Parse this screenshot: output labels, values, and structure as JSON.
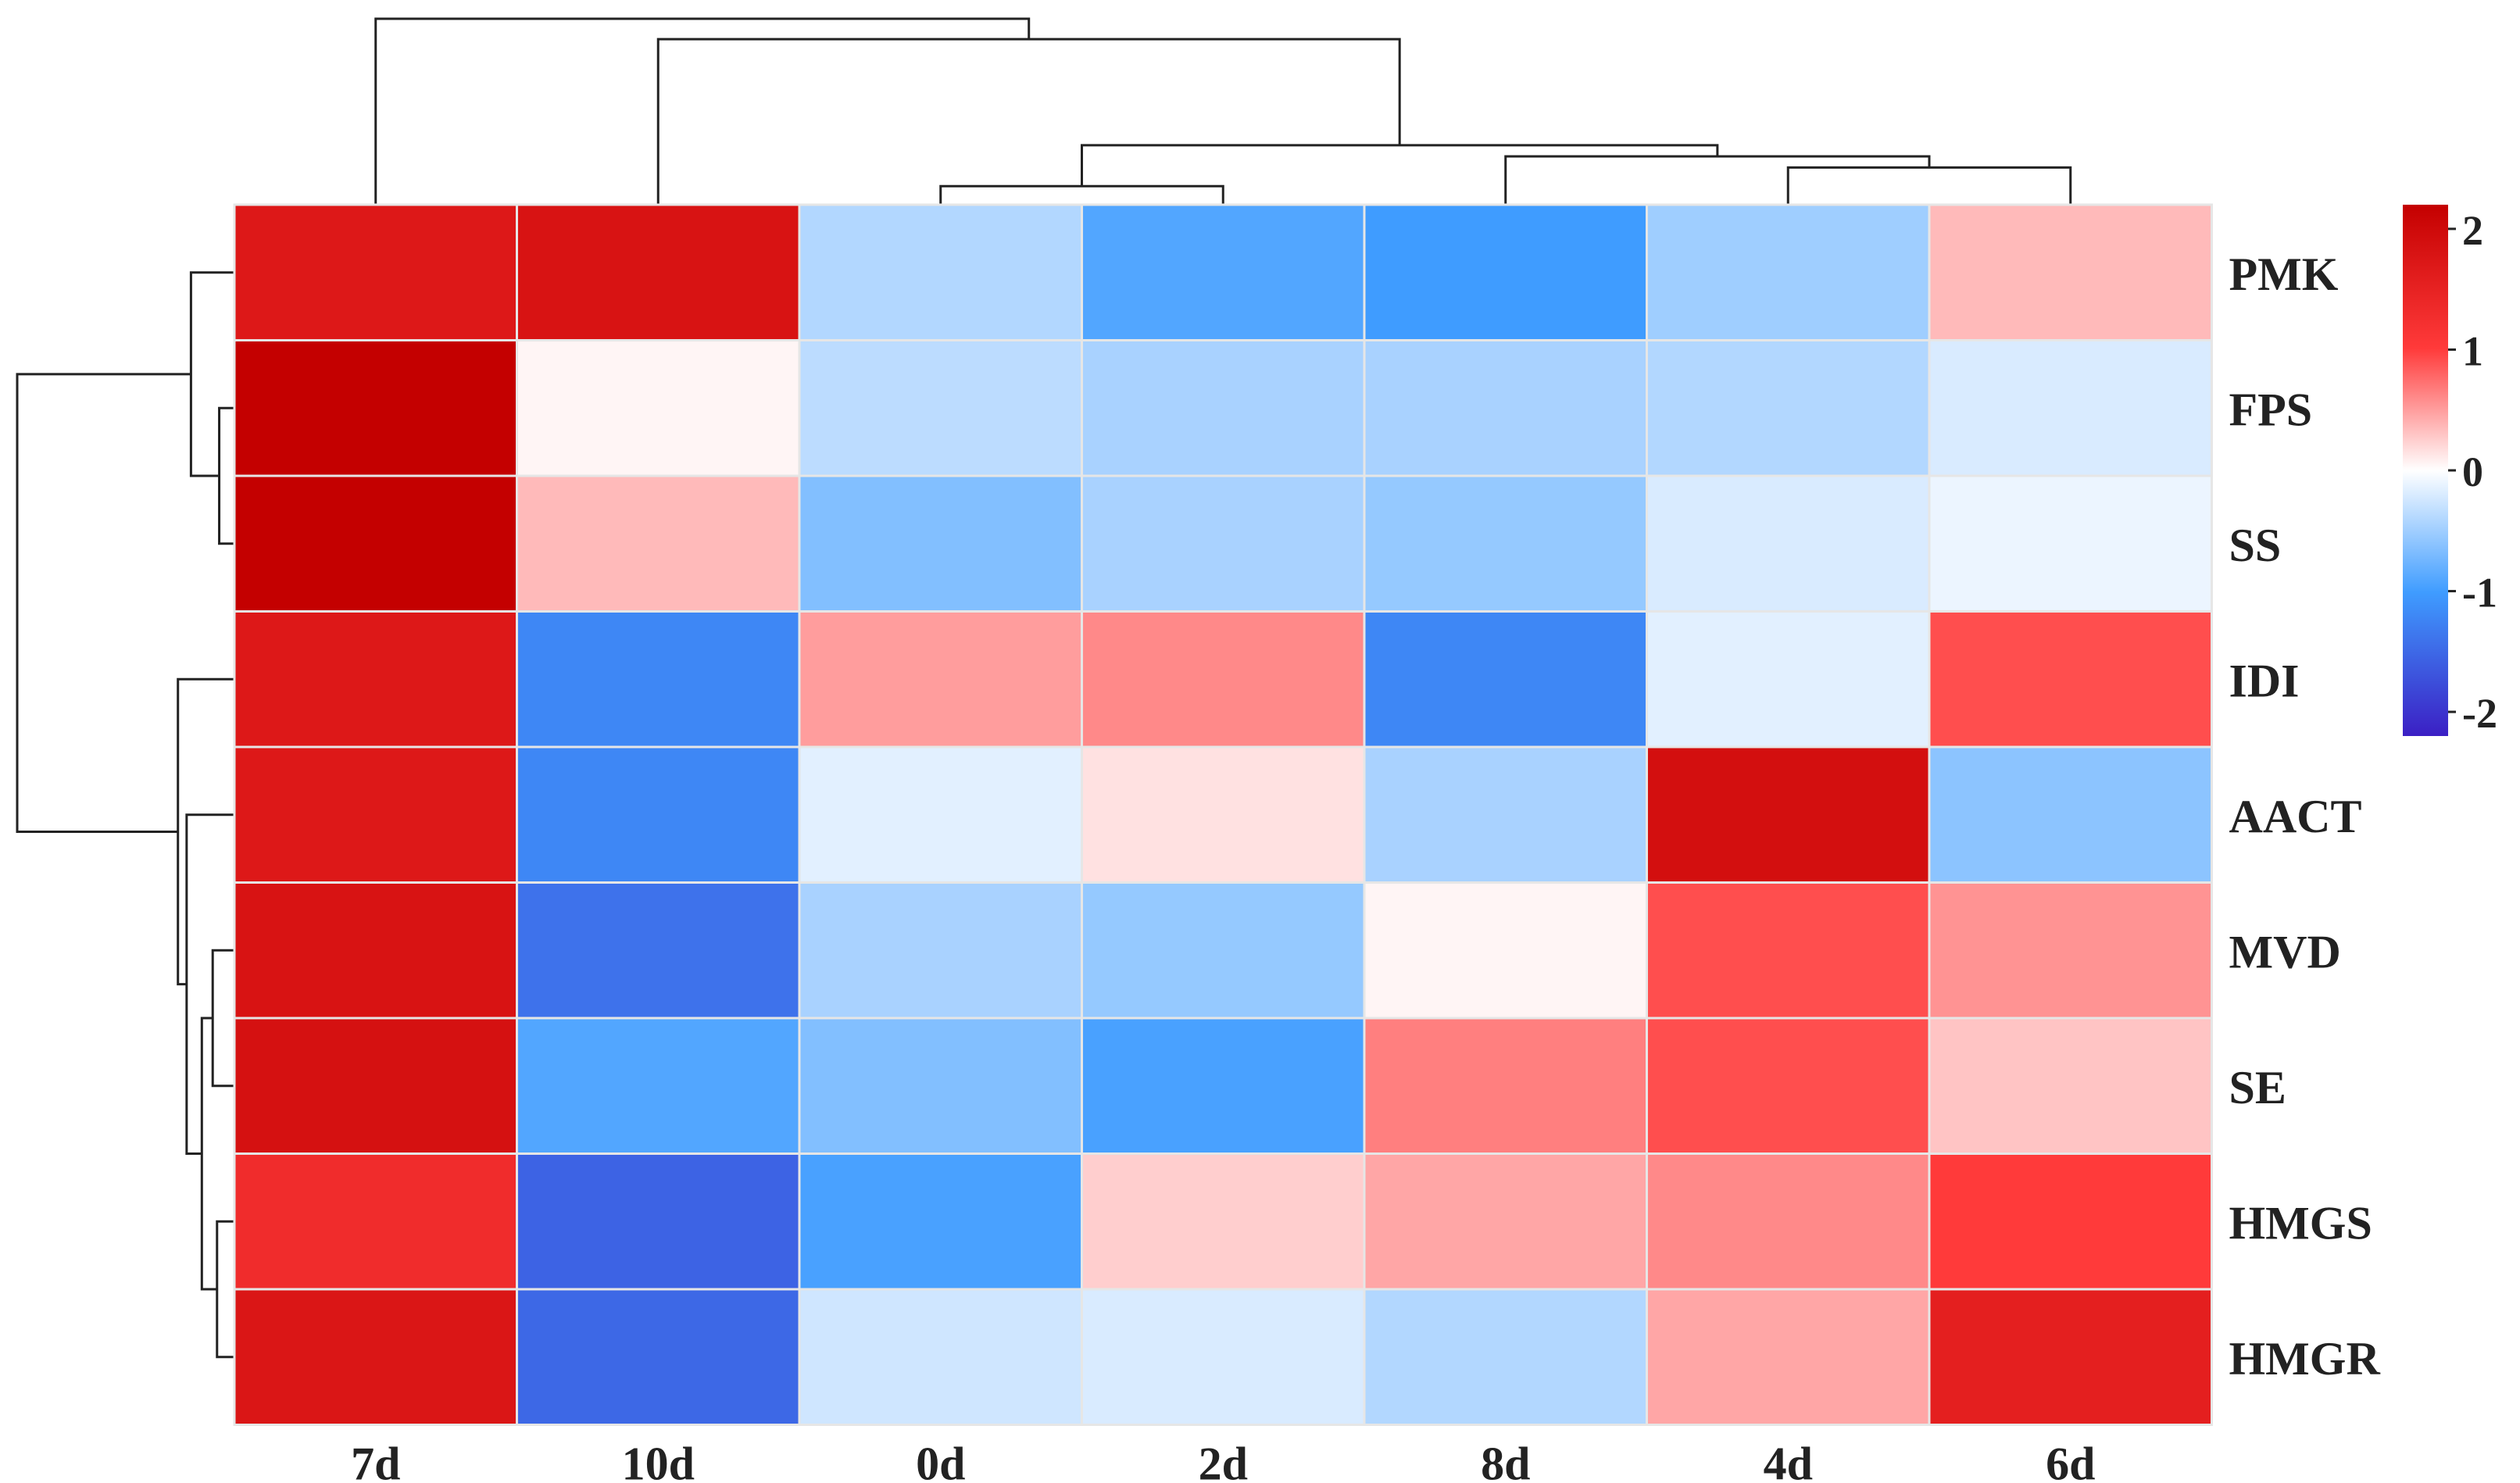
{
  "chart_data": {
    "type": "heatmap",
    "title": "",
    "xlabel": "",
    "ylabel": "",
    "columns": [
      "7d",
      "10d",
      "0d",
      "2d",
      "8d",
      "4d",
      "6d"
    ],
    "rows": [
      "PMK",
      "FPS",
      "SS",
      "IDI",
      "AACT",
      "MVD",
      "SE",
      "HMGS",
      "HMGR"
    ],
    "values": [
      [
        1.7,
        1.8,
        -0.4,
        -0.9,
        -1.0,
        -0.5,
        0.35
      ],
      [
        2.2,
        0.05,
        -0.35,
        -0.45,
        -0.45,
        -0.4,
        -0.2
      ],
      [
        2.2,
        0.35,
        -0.65,
        -0.45,
        -0.55,
        -0.2,
        -0.1
      ],
      [
        1.7,
        -1.2,
        0.5,
        0.6,
        -1.2,
        -0.15,
        0.9
      ],
      [
        1.7,
        -1.2,
        -0.15,
        0.15,
        -0.45,
        1.9,
        -0.6
      ],
      [
        1.8,
        -1.4,
        -0.45,
        -0.55,
        0.05,
        0.9,
        0.55
      ],
      [
        1.85,
        -0.9,
        -0.65,
        -0.95,
        0.65,
        0.9,
        0.3
      ],
      [
        1.3,
        -1.55,
        -0.95,
        0.25,
        0.45,
        0.6,
        1.0
      ],
      [
        1.75,
        -1.5,
        -0.25,
        -0.2,
        -0.4,
        0.45,
        1.55
      ]
    ],
    "colorbar": {
      "range": [
        -2.2,
        2.2
      ],
      "ticks": [
        "2",
        "1",
        "0",
        "-1",
        "-2"
      ],
      "tick_values": [
        2,
        1,
        0,
        -1,
        -2
      ],
      "colors": {
        "low": "#3b1fc4",
        "mid_low": "#3f9cff",
        "mid": "#ffffff",
        "mid_high": "#ff3a3a",
        "high": "#c40000"
      }
    },
    "legend_position": "right",
    "grid": true,
    "column_dendrogram": true,
    "row_dendrogram": true
  }
}
